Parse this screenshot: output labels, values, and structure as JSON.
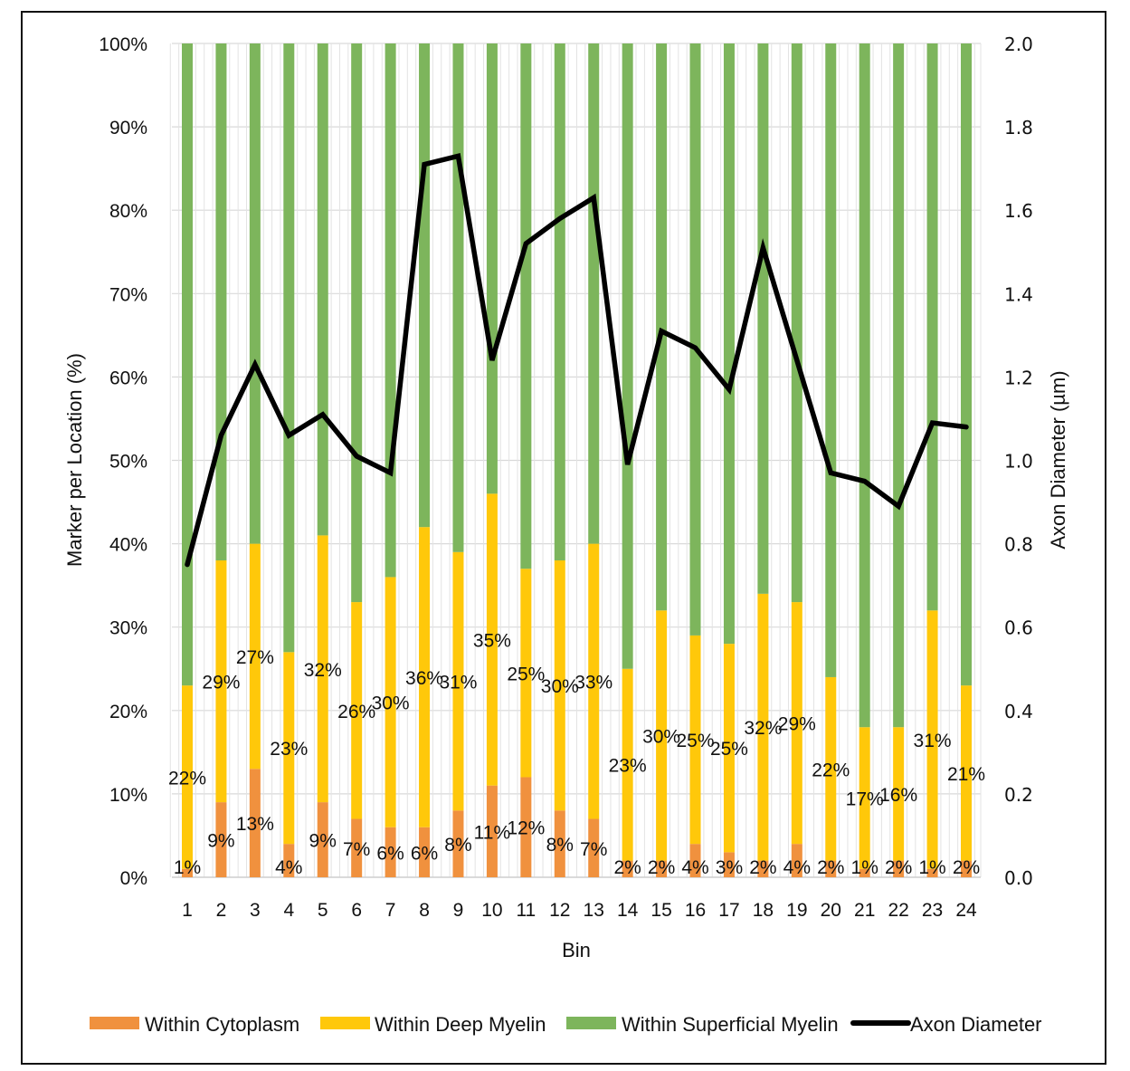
{
  "chart_data": {
    "type": "bar",
    "subtype": "stacked-100-with-line",
    "title": "",
    "xlabel": "Bin",
    "ylabel": "Marker per Location (%)",
    "y2label": "Axon Diameter (µm)",
    "ylim": [
      0,
      100
    ],
    "y2lim": [
      0,
      2.0
    ],
    "yticks": [
      "0%",
      "10%",
      "20%",
      "30%",
      "40%",
      "50%",
      "60%",
      "70%",
      "80%",
      "90%",
      "100%"
    ],
    "y2ticks": [
      "0.0",
      "0.2",
      "0.4",
      "0.6",
      "0.8",
      "1.0",
      "1.2",
      "1.4",
      "1.6",
      "1.8",
      "2.0"
    ],
    "grid": true,
    "legend_position": "bottom",
    "categories": [
      "1",
      "2",
      "3",
      "4",
      "5",
      "6",
      "7",
      "8",
      "9",
      "10",
      "11",
      "12",
      "13",
      "14",
      "15",
      "16",
      "17",
      "18",
      "19",
      "20",
      "21",
      "22",
      "23",
      "24"
    ],
    "series": [
      {
        "name": "Within Cytoplasm",
        "kind": "bar",
        "color": "#F0913E",
        "values": [
          1,
          9,
          13,
          4,
          9,
          7,
          6,
          6,
          8,
          11,
          12,
          8,
          7,
          2,
          2,
          4,
          3,
          2,
          4,
          2,
          1,
          2,
          1,
          2
        ],
        "labels": [
          "1%",
          "9%",
          "13%",
          "4%",
          "9%",
          "7%",
          "6%",
          "6%",
          "8%",
          "11%",
          "12%",
          "8%",
          "7%",
          "2%",
          "2%",
          "4%",
          "3%",
          "2%",
          "4%",
          "2%",
          "1%",
          "2%",
          "1%",
          "2%"
        ]
      },
      {
        "name": "Within Deep Myelin",
        "kind": "bar",
        "color": "#FFC80A",
        "values": [
          22,
          29,
          27,
          23,
          32,
          26,
          30,
          36,
          31,
          35,
          25,
          30,
          33,
          23,
          30,
          25,
          25,
          32,
          29,
          22,
          17,
          16,
          31,
          21
        ],
        "labels": [
          "22%",
          "29%",
          "27%",
          "23%",
          "32%",
          "26%",
          "30%",
          "36%",
          "31%",
          "35%",
          "25%",
          "30%",
          "33%",
          "23%",
          "30%",
          "25%",
          "25%",
          "32%",
          "29%",
          "22%",
          "17%",
          "16%",
          "31%",
          "21%"
        ]
      },
      {
        "name": "Within Superficial Myelin",
        "kind": "bar",
        "color": "#7DB55C",
        "values": [
          77,
          62,
          60,
          73,
          59,
          67,
          64,
          58,
          61,
          54,
          63,
          62,
          60,
          75,
          68,
          71,
          72,
          66,
          67,
          76,
          82,
          82,
          68,
          77
        ]
      },
      {
        "name": "Axon Diameter",
        "kind": "line",
        "axis": "right",
        "color": "#000000",
        "values": [
          0.75,
          1.06,
          1.23,
          1.06,
          1.11,
          1.01,
          0.97,
          1.71,
          1.73,
          1.24,
          1.52,
          1.58,
          1.63,
          0.99,
          1.31,
          1.27,
          1.17,
          1.51,
          1.24,
          0.97,
          0.95,
          0.89,
          1.09,
          1.08
        ]
      }
    ]
  }
}
